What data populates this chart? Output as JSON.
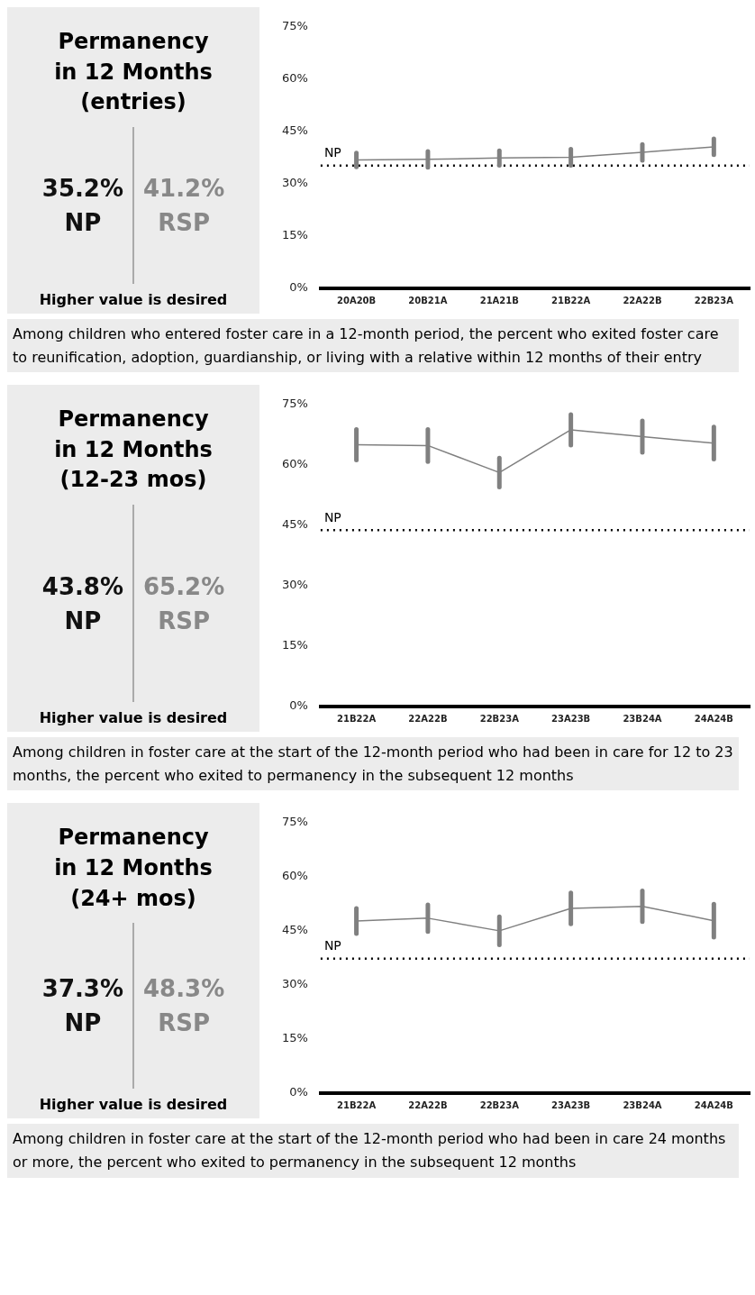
{
  "chart_data": [
    {
      "type": "line",
      "title": "Permanency in 12 Months (entries)",
      "categories": [
        "20A20B",
        "20B21A",
        "21A21B",
        "21B22A",
        "22A22B",
        "22B23A"
      ],
      "values": [
        36.8,
        37.0,
        37.4,
        37.6,
        39.0,
        40.6
      ],
      "errors": [
        2.0,
        2.3,
        2.1,
        2.3,
        2.3,
        2.3
      ],
      "color": "#808080",
      "marker": "none",
      "ylim": [
        0,
        75
      ],
      "yticks": [
        {
          "value": 0,
          "label": "0%"
        },
        {
          "value": 15,
          "label": "15%"
        },
        {
          "value": 30,
          "label": "30%"
        },
        {
          "value": 45,
          "label": "45%"
        },
        {
          "value": 60,
          "label": "60%"
        },
        {
          "value": 75,
          "label": "75%"
        }
      ],
      "ref_lines": [
        {
          "axis": "y",
          "value": 35.2,
          "label": "NP",
          "color": "#000000",
          "line_style": "dotted"
        }
      ],
      "annotations": [
        "35.2%",
        "NP",
        "41.2%",
        "RSP",
        "Higher value is desired",
        "Among children who entered foster care in a 12-month period, the percent who exited foster care to reunification, adoption, guardianship, or living with a relative within 12 months of their entry"
      ]
    },
    {
      "type": "line",
      "title": "Permanency in 12 Months (12-23 mos)",
      "categories": [
        "21B22A",
        "22A22B",
        "22B23A",
        "23A23B",
        "23B24A",
        "24A24B"
      ],
      "values": [
        65.0,
        64.8,
        58.1,
        68.7,
        67.0,
        65.4
      ],
      "errors": [
        3.8,
        4.0,
        3.6,
        3.8,
        3.9,
        4.0
      ],
      "color": "#808080",
      "marker": "none",
      "ylim": [
        0,
        75
      ],
      "yticks": [
        {
          "value": 0,
          "label": "0%"
        },
        {
          "value": 15,
          "label": "15%"
        },
        {
          "value": 30,
          "label": "30%"
        },
        {
          "value": 45,
          "label": "45%"
        },
        {
          "value": 60,
          "label": "60%"
        },
        {
          "value": 75,
          "label": "75%"
        }
      ],
      "ref_lines": [
        {
          "axis": "y",
          "value": 43.8,
          "label": "NP",
          "color": "#000000",
          "line_style": "dotted"
        }
      ],
      "annotations": [
        "43.8%",
        "NP",
        "65.2%",
        "RSP",
        "Higher value is desired",
        "Among children in foster care at the start of the 12-month period who had been in care for 12 to 23 months, the percent who exited to permanency in the subsequent 12 months"
      ]
    },
    {
      "type": "line",
      "title": "Permanency in 12 Months (24+ mos)",
      "categories": [
        "21B22A",
        "22A22B",
        "22B23A",
        "23A23B",
        "23B24A",
        "24A24B"
      ],
      "values": [
        47.7,
        48.5,
        45.0,
        51.2,
        51.8,
        47.8
      ],
      "errors": [
        3.5,
        3.7,
        3.9,
        4.3,
        4.3,
        4.6
      ],
      "color": "#808080",
      "marker": "none",
      "ylim": [
        0,
        75
      ],
      "yticks": [
        {
          "value": 0,
          "label": "0%"
        },
        {
          "value": 15,
          "label": "15%"
        },
        {
          "value": 30,
          "label": "30%"
        },
        {
          "value": 45,
          "label": "45%"
        },
        {
          "value": 60,
          "label": "60%"
        },
        {
          "value": 75,
          "label": "75%"
        }
      ],
      "ref_lines": [
        {
          "axis": "y",
          "value": 37.3,
          "label": "NP",
          "color": "#000000",
          "line_style": "dotted"
        }
      ],
      "annotations": [
        "37.3%",
        "NP",
        "48.3%",
        "RSP",
        "Higher value is desired",
        "Among children in foster care at the start of the 12-month period who had been in care 24 months or more, the percent who exited to permanency in the subsequent 12 months"
      ]
    }
  ]
}
